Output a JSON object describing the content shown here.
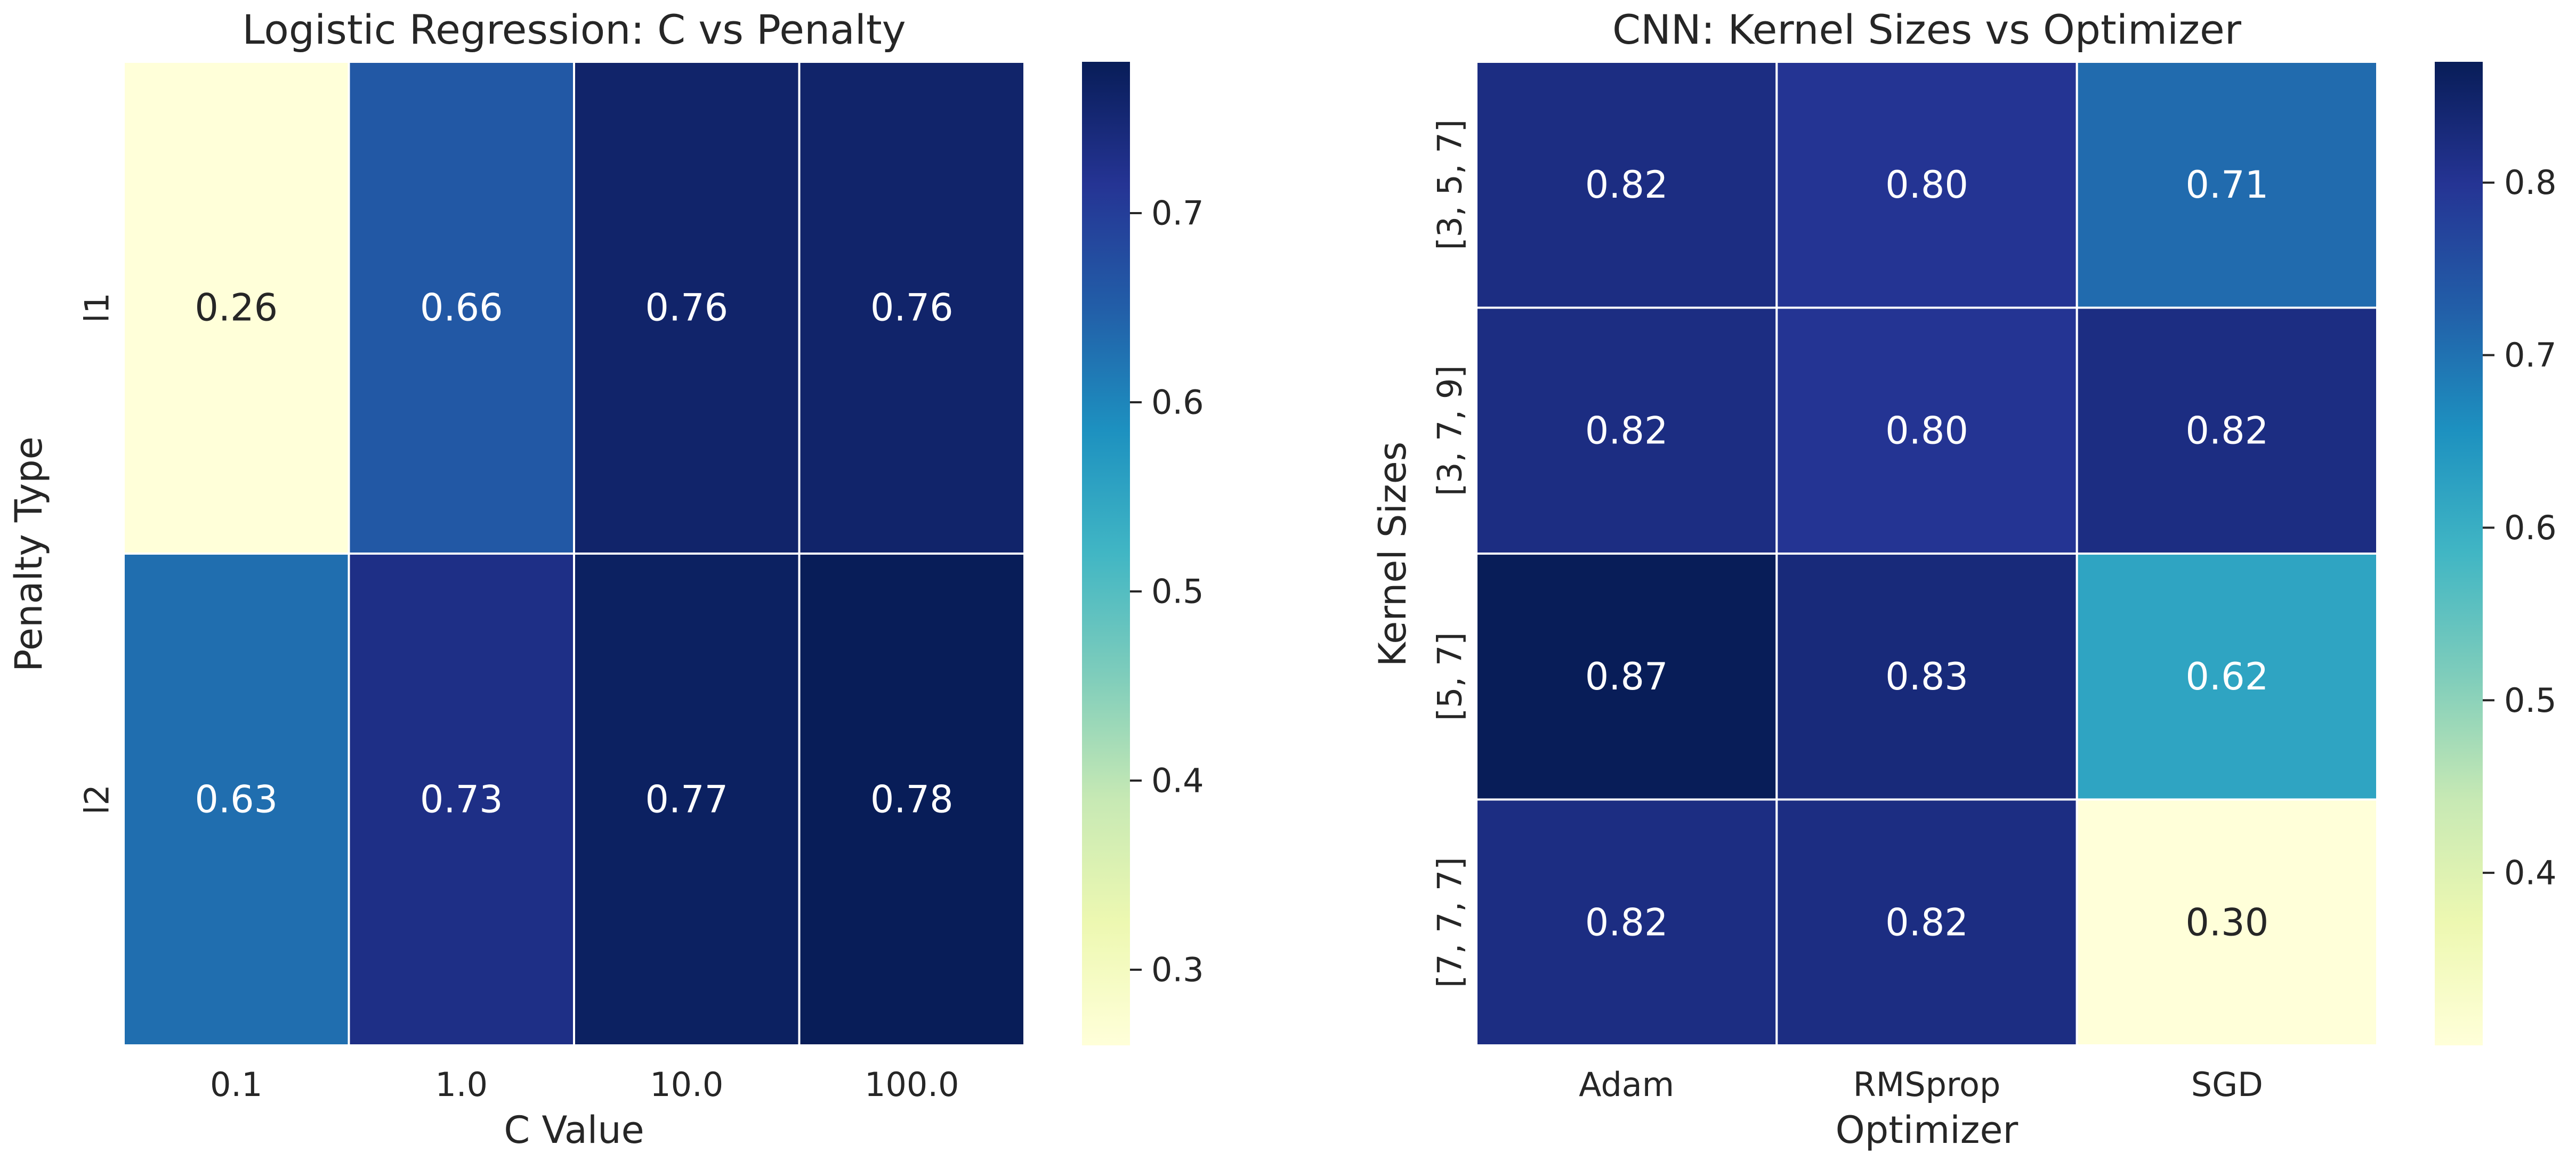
{
  "chart_data": [
    {
      "type": "heatmap",
      "title": "Logistic Regression: C vs Penalty",
      "xlabel": "C Value",
      "ylabel": "Penalty Type",
      "x_categories": [
        "0.1",
        "1.0",
        "10.0",
        "100.0"
      ],
      "y_categories": [
        "l1",
        "l2"
      ],
      "values": [
        [
          0.26,
          0.66,
          0.76,
          0.76
        ],
        [
          0.63,
          0.73,
          0.77,
          0.78
        ]
      ],
      "annotations": [
        [
          "0.26",
          "0.66",
          "0.76",
          "0.76"
        ],
        [
          "0.63",
          "0.73",
          "0.77",
          "0.78"
        ]
      ],
      "colormap": "YlGnBu",
      "vmin": 0.26,
      "vmax": 0.78,
      "colorbar_ticks": [
        "0.3",
        "0.4",
        "0.5",
        "0.6",
        "0.7"
      ]
    },
    {
      "type": "heatmap",
      "title": "CNN: Kernel Sizes vs Optimizer",
      "xlabel": "Optimizer",
      "ylabel": "Kernel Sizes",
      "x_categories": [
        "Adam",
        "RMSprop",
        "SGD"
      ],
      "y_categories": [
        "[3, 5, 7]",
        "[3, 7, 9]",
        "[5, 7]",
        "[7, 7, 7]"
      ],
      "values": [
        [
          0.82,
          0.8,
          0.71
        ],
        [
          0.82,
          0.8,
          0.82
        ],
        [
          0.87,
          0.83,
          0.62
        ],
        [
          0.82,
          0.82,
          0.3
        ]
      ],
      "annotations": [
        [
          "0.82",
          "0.80",
          "0.71"
        ],
        [
          "0.82",
          "0.80",
          "0.82"
        ],
        [
          "0.87",
          "0.83",
          "0.62"
        ],
        [
          "0.82",
          "0.82",
          "0.30"
        ]
      ],
      "colormap": "YlGnBu",
      "vmin": 0.3,
      "vmax": 0.87,
      "colorbar_ticks": [
        "0.4",
        "0.5",
        "0.6",
        "0.7",
        "0.8"
      ]
    }
  ]
}
